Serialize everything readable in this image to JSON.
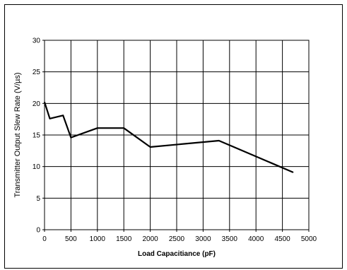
{
  "chart_data": {
    "type": "line",
    "title": "",
    "xlabel": "Load Capacitiance (pF)",
    "ylabel": "Transmitter Output Slew Rate (V/µs)",
    "xlim": [
      0,
      5000
    ],
    "ylim": [
      0,
      30
    ],
    "xticks": [
      0,
      500,
      1000,
      1500,
      2000,
      2500,
      3000,
      3500,
      4000,
      4500,
      5000
    ],
    "yticks": [
      0,
      5,
      10,
      15,
      20,
      25,
      30
    ],
    "grid": true,
    "series": [
      {
        "x": [
          0,
          100,
          350,
          500,
          1000,
          1500,
          2000,
          3300,
          4700
        ],
        "y": [
          20.2,
          17.6,
          18.1,
          14.6,
          16.1,
          16.1,
          13.1,
          14.1,
          9.1
        ]
      }
    ],
    "line_color": "#000000"
  }
}
